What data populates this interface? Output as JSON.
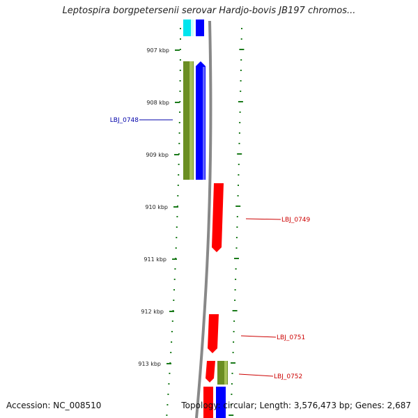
{
  "title": "Leptospira borgpetersenii serovar Hardjo-bovis JB197 chromos...",
  "footer": {
    "accession": "Accession: NC_008510",
    "summary": "Topology: circular; Length: 3,576,473 bp; Genes: 2,687"
  },
  "kbp_labels": [
    "907 kbp",
    "908 kbp",
    "909 kbp",
    "910 kbp",
    "911 kbp",
    "912 kbp",
    "913 kbp"
  ],
  "gene_labels": [
    "LBJ_0748",
    "LBJ_0749",
    "LBJ_0751",
    "LBJ_0752"
  ],
  "colors": {
    "forward": "#0000ff",
    "reverse": "#ff0000",
    "olive": "#6b8e23",
    "cyan": "#00e5ee",
    "ticks": "#1a7a1a",
    "backbone": "#888888",
    "label_blue": "#0000aa",
    "label_red": "#cc0000"
  }
}
